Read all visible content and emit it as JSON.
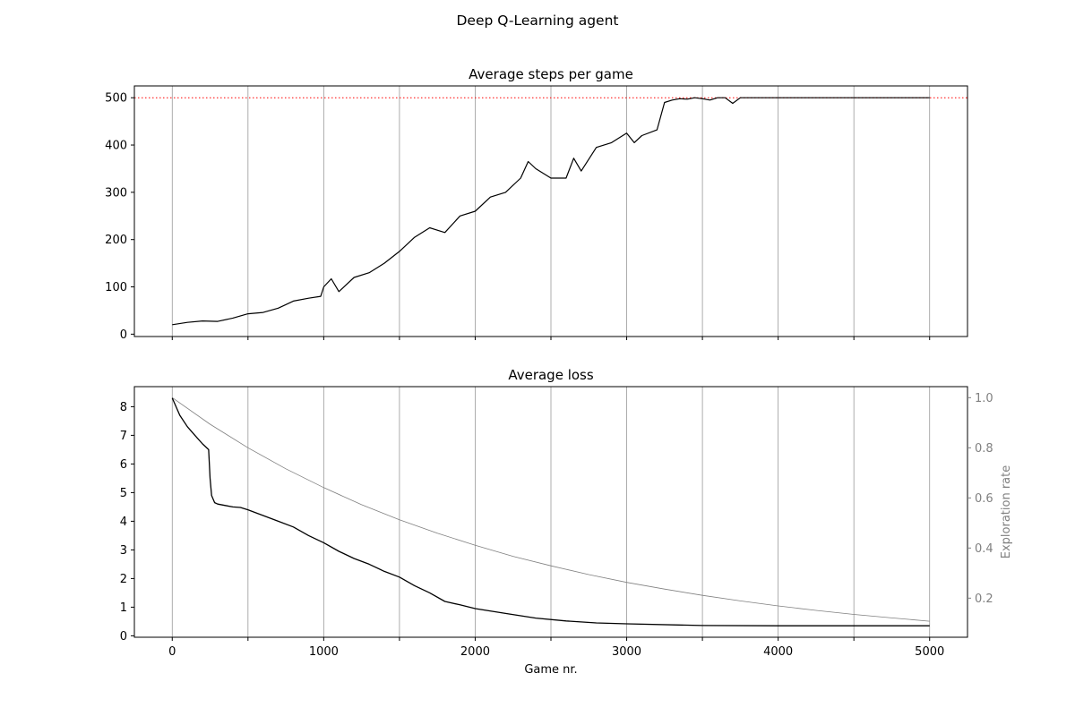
{
  "figure": {
    "suptitle": "Deep Q-Learning agent"
  },
  "colors": {
    "series": "#000000",
    "target_line": "#ff0000",
    "grid": "#999999",
    "exploration": "#808080"
  },
  "chart_data": [
    {
      "type": "line",
      "title": "Average steps per game",
      "xlabel": "",
      "ylabel": "",
      "xlim": [
        -250,
        5250
      ],
      "ylim": [
        -5,
        525
      ],
      "xticks": [
        0,
        500,
        1000,
        1500,
        2000,
        2500,
        3000,
        3500,
        4000,
        4500,
        5000
      ],
      "xtick_labels_visible": false,
      "yticks": [
        0,
        100,
        200,
        300,
        400,
        500
      ],
      "ytick_labels": [
        "0",
        "100",
        "200",
        "300",
        "400",
        "500"
      ],
      "grid": "x",
      "reference_line": {
        "y": 500,
        "style": "dotted",
        "color": "#ff0000"
      },
      "series": [
        {
          "x": [
            0,
            100,
            200,
            300,
            400,
            500,
            600,
            700,
            800,
            900,
            980,
            1000,
            1050,
            1100,
            1200,
            1300,
            1400,
            1500,
            1600,
            1700,
            1800,
            1900,
            2000,
            2100,
            2200,
            2300,
            2350,
            2400,
            2500,
            2600,
            2650,
            2700,
            2800,
            2900,
            3000,
            3050,
            3100,
            3200,
            3250,
            3300,
            3350,
            3400,
            3450,
            3500,
            3550,
            3600,
            3650,
            3700,
            3750,
            3800,
            4000,
            4500,
            5000
          ],
          "y": [
            20,
            25,
            28,
            27,
            34,
            43,
            46,
            55,
            70,
            76,
            80,
            100,
            117,
            90,
            120,
            130,
            150,
            175,
            205,
            225,
            215,
            250,
            260,
            290,
            300,
            330,
            365,
            350,
            330,
            330,
            372,
            345,
            395,
            405,
            425,
            405,
            420,
            432,
            490,
            495,
            498,
            497,
            500,
            498,
            495,
            500,
            500,
            488,
            500,
            500,
            500,
            500,
            500
          ]
        }
      ]
    },
    {
      "type": "line",
      "title": "Average loss",
      "xlabel": "Game nr.",
      "ylabel": "",
      "ylabel_right": "Exploration rate",
      "xlim": [
        -250,
        5250
      ],
      "ylim": [
        -0.05,
        8.7
      ],
      "ylim_right": [
        0.044,
        1.044
      ],
      "xticks": [
        0,
        500,
        1000,
        1500,
        2000,
        2500,
        3000,
        3500,
        4000,
        4500,
        5000
      ],
      "xtick_labels": [
        "0",
        "1000",
        "2000",
        "3000",
        "4000",
        "5000"
      ],
      "xtick_label_values": [
        0,
        1000,
        2000,
        3000,
        4000,
        5000
      ],
      "yticks": [
        0,
        1,
        2,
        3,
        4,
        5,
        6,
        7,
        8
      ],
      "ytick_labels": [
        "0",
        "1",
        "2",
        "3",
        "4",
        "5",
        "6",
        "7",
        "8"
      ],
      "yticks_right": [
        0.2,
        0.4,
        0.6,
        0.8,
        1.0
      ],
      "ytick_labels_right": [
        "0.2",
        "0.4",
        "0.6",
        "0.8",
        "1.0"
      ],
      "grid": "x",
      "series": [
        {
          "axis": "left",
          "x": [
            0,
            50,
            100,
            150,
            200,
            240,
            250,
            260,
            280,
            300,
            350,
            400,
            450,
            500,
            600,
            700,
            800,
            900,
            1000,
            1100,
            1200,
            1300,
            1400,
            1500,
            1600,
            1700,
            1800,
            1900,
            2000,
            2200,
            2400,
            2600,
            2800,
            3000,
            3500,
            4000,
            4500,
            5000
          ],
          "y": [
            8.3,
            7.7,
            7.3,
            7.0,
            6.7,
            6.5,
            5.5,
            4.9,
            4.65,
            4.6,
            4.55,
            4.5,
            4.48,
            4.4,
            4.2,
            4.0,
            3.8,
            3.5,
            3.25,
            2.95,
            2.7,
            2.5,
            2.25,
            2.05,
            1.75,
            1.5,
            1.2,
            1.08,
            0.95,
            0.78,
            0.62,
            0.52,
            0.45,
            0.42,
            0.36,
            0.35,
            0.35,
            0.35
          ]
        },
        {
          "axis": "right",
          "x": [
            0,
            250,
            500,
            750,
            1000,
            1250,
            1500,
            1750,
            2000,
            2250,
            2500,
            2750,
            3000,
            3250,
            3500,
            3750,
            4000,
            4250,
            4500,
            4750,
            5000
          ],
          "y": [
            1.0,
            0.894,
            0.8,
            0.716,
            0.641,
            0.573,
            0.513,
            0.459,
            0.411,
            0.367,
            0.329,
            0.294,
            0.263,
            0.236,
            0.211,
            0.189,
            0.169,
            0.151,
            0.135,
            0.121,
            0.108
          ]
        }
      ]
    }
  ]
}
